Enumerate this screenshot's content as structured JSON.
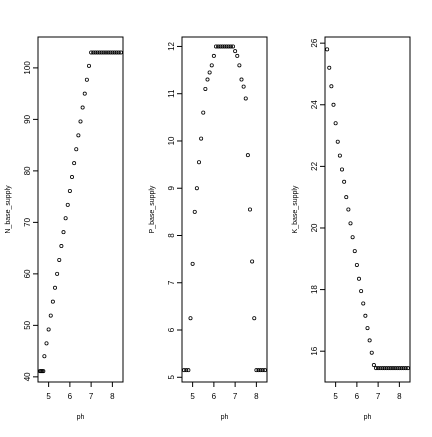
{
  "chart_data": [
    {
      "type": "scatter",
      "xlabel": "ph",
      "ylabel": "N_base_supply",
      "xlim": [
        4.5,
        8.5
      ],
      "ylim": [
        39,
        106
      ],
      "xticks": [
        "5",
        "6",
        "7",
        "8"
      ],
      "yticks": [
        "40",
        "50",
        "60",
        "70",
        "80",
        "90",
        "100"
      ],
      "x": [
        4.6,
        4.65,
        4.7,
        4.75,
        4.8,
        4.9,
        5.0,
        5.1,
        5.2,
        5.3,
        5.4,
        5.5,
        5.6,
        5.7,
        5.8,
        5.9,
        6.0,
        6.1,
        6.2,
        6.3,
        6.4,
        6.5,
        6.6,
        6.7,
        6.8,
        6.9,
        7.0,
        7.1,
        7.2,
        7.3,
        7.4,
        7.5,
        7.6,
        7.7,
        7.8,
        7.9,
        8.0,
        8.1,
        8.2,
        8.3,
        8.4
      ],
      "y": [
        41.1,
        41.1,
        41.1,
        41.1,
        44.0,
        46.5,
        49.2,
        51.9,
        54.6,
        57.3,
        60.0,
        62.7,
        65.4,
        68.1,
        70.8,
        73.4,
        76.1,
        78.8,
        81.5,
        84.2,
        86.9,
        89.6,
        92.3,
        95.0,
        97.7,
        100.4,
        103.0,
        103.0,
        103.0,
        103.0,
        103.0,
        103.0,
        103.0,
        103.0,
        103.0,
        103.0,
        103.0,
        103.0,
        103.0,
        103.0,
        103.0
      ]
    },
    {
      "type": "scatter",
      "xlabel": "ph",
      "ylabel": "P_base_supply",
      "xlim": [
        4.5,
        8.5
      ],
      "ylim": [
        4.9,
        12.2
      ],
      "xticks": [
        "5",
        "6",
        "7",
        "8"
      ],
      "yticks": [
        "5",
        "6",
        "7",
        "8",
        "9",
        "10",
        "11",
        "12"
      ],
      "x": [
        4.6,
        4.7,
        4.8,
        4.9,
        5.0,
        5.1,
        5.2,
        5.3,
        5.4,
        5.5,
        5.6,
        5.7,
        5.8,
        5.9,
        6.0,
        6.1,
        6.2,
        6.3,
        6.4,
        6.5,
        6.6,
        6.7,
        6.8,
        6.9,
        7.0,
        7.1,
        7.2,
        7.3,
        7.4,
        7.5,
        7.6,
        7.7,
        7.8,
        7.9,
        8.0,
        8.1,
        8.2,
        8.3,
        8.4
      ],
      "y": [
        5.15,
        5.15,
        5.15,
        6.25,
        7.4,
        8.5,
        9.0,
        9.55,
        10.05,
        10.6,
        11.1,
        11.3,
        11.45,
        11.6,
        11.8,
        12.0,
        12.0,
        12.0,
        12.0,
        12.0,
        12.0,
        12.0,
        12.0,
        12.0,
        11.9,
        11.8,
        11.6,
        11.3,
        11.15,
        10.9,
        9.7,
        8.55,
        7.45,
        6.25,
        5.15,
        5.15,
        5.15,
        5.15,
        5.15
      ]
    },
    {
      "type": "scatter",
      "xlabel": "ph",
      "ylabel": "K_base_supply",
      "xlim": [
        4.5,
        8.5
      ],
      "ylim": [
        15.0,
        26.2
      ],
      "xticks": [
        "5",
        "6",
        "7",
        "8"
      ],
      "yticks": [
        "16",
        "18",
        "20",
        "22",
        "24",
        "26"
      ],
      "x": [
        4.6,
        4.7,
        4.8,
        4.9,
        5.0,
        5.1,
        5.2,
        5.3,
        5.4,
        5.5,
        5.6,
        5.7,
        5.8,
        5.9,
        6.0,
        6.1,
        6.2,
        6.3,
        6.4,
        6.5,
        6.6,
        6.7,
        6.8,
        6.9,
        7.0,
        7.1,
        7.2,
        7.3,
        7.4,
        7.5,
        7.6,
        7.7,
        7.8,
        7.9,
        8.0,
        8.1,
        8.2,
        8.3,
        8.4
      ],
      "y": [
        25.8,
        25.2,
        24.6,
        24.0,
        23.4,
        22.8,
        22.35,
        21.9,
        21.5,
        21.0,
        20.6,
        20.15,
        19.7,
        19.25,
        18.8,
        18.35,
        17.95,
        17.55,
        17.15,
        16.75,
        16.35,
        15.95,
        15.55,
        15.45,
        15.45,
        15.45,
        15.45,
        15.45,
        15.45,
        15.45,
        15.45,
        15.45,
        15.45,
        15.45,
        15.45,
        15.45,
        15.45,
        15.45,
        15.45
      ]
    }
  ]
}
